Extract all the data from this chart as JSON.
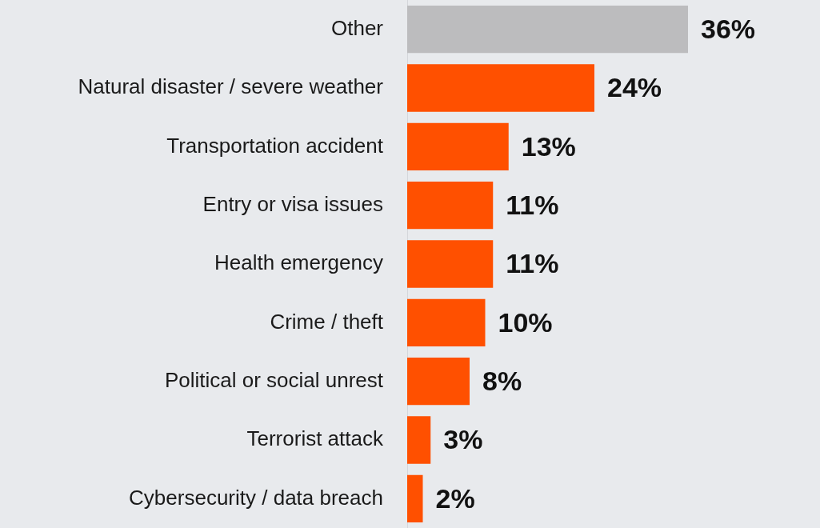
{
  "chart_data": {
    "type": "bar",
    "orientation": "horizontal",
    "categories": [
      "Other",
      "Natural disaster / severe weather",
      "Transportation accident",
      "Entry or visa issues",
      "Health emergency",
      "Crime / theft",
      "Political or social unrest",
      "Terrorist attack",
      "Cybersecurity / data breach"
    ],
    "values": [
      36,
      24,
      13,
      11,
      11,
      10,
      8,
      3,
      2
    ],
    "colors": [
      "#bcbcbe",
      "#ff5000",
      "#ff5000",
      "#ff5000",
      "#ff5000",
      "#ff5000",
      "#ff5000",
      "#ff5000",
      "#ff5000"
    ],
    "value_labels": [
      "36%",
      "24%",
      "13%",
      "11%",
      "11%",
      "10%",
      "8%",
      "3%",
      "2%"
    ],
    "tick_labels": "y",
    "legend": false
  }
}
